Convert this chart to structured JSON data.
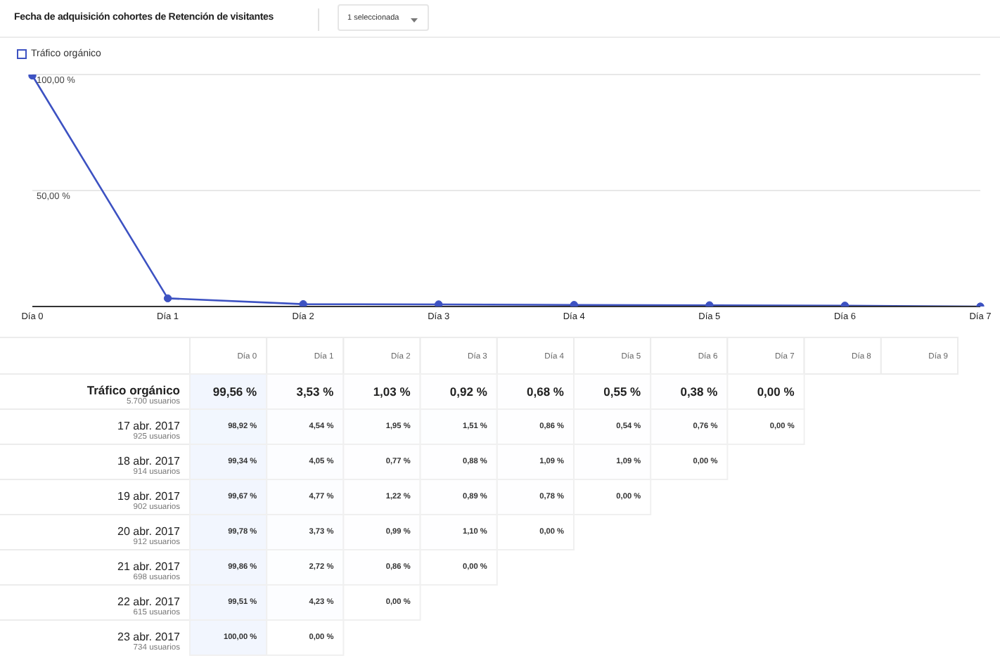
{
  "chart_data": [
    {
      "type": "line",
      "title": "Fecha de adquisición cohortes de Retención de visitantes",
      "annotations": [
        "1 seleccionada"
      ],
      "categories": [
        "Día 0",
        "Día 1",
        "Día 2",
        "Día 3",
        "Día 4",
        "Día 5",
        "Día 6",
        "Día 7"
      ],
      "series": [
        {
          "name": "Tráfico orgánico",
          "color": "#3d52c2",
          "values": [
            99.56,
            3.53,
            1.03,
            0.92,
            0.68,
            0.55,
            0.38,
            0
          ]
        }
      ],
      "ylim": [
        0,
        100
      ],
      "yticks": [
        {
          "value": 0,
          "label": null
        },
        {
          "value": 50,
          "label": "50,00 %"
        },
        {
          "value": 100,
          "label": "100,00 %"
        }
      ],
      "grid": "y",
      "legend": "top left",
      "marker": "circle",
      "line_style": "solid"
    },
    {
      "type": "heatmap",
      "categories": [
        "Día 0",
        "Día 1",
        "Día 2",
        "Día 3",
        "Día 4",
        "Día 5",
        "Día 6",
        "Día 7",
        "Día 8",
        "Día 9"
      ],
      "y_categories": [
        "Tráfico orgánico",
        "17 abr. 2017",
        "18 abr. 2017",
        "19 abr. 2017",
        "20 abr. 2017",
        "21 abr. 2017",
        "22 abr. 2017",
        "23 abr. 2017"
      ],
      "y2_categories": [
        "5.700 usuarios",
        "925 usuarios",
        "914 usuarios",
        "902 usuarios",
        "912 usuarios",
        "698 usuarios",
        "615 usuarios",
        "734 usuarios"
      ],
      "cells": [
        [
          99.56,
          3.53,
          1.03,
          0.92,
          0.68,
          0.55,
          0.38,
          0,
          null,
          null
        ],
        [
          98.92,
          4.54,
          1.95,
          1.51,
          0.86,
          0.54,
          0.76,
          0,
          null,
          null
        ],
        [
          99.34,
          4.05,
          0.77,
          0.88,
          1.09,
          1.09,
          0,
          null,
          null,
          null
        ],
        [
          99.67,
          4.77,
          1.22,
          0.89,
          0.78,
          0,
          null,
          null,
          null,
          null
        ],
        [
          99.78,
          3.73,
          0.99,
          1.1,
          0,
          null,
          null,
          null,
          null,
          null
        ],
        [
          99.86,
          2.72,
          0.86,
          0,
          null,
          null,
          null,
          null,
          null,
          null
        ],
        [
          99.51,
          4.23,
          0,
          null,
          null,
          null,
          null,
          null,
          null,
          null
        ],
        [
          100,
          0,
          null,
          null,
          null,
          null,
          null,
          null,
          null,
          null
        ]
      ],
      "cell_labels": [
        [
          "99,56 %",
          "3,53 %",
          "1,03 %",
          "0,92 %",
          "0,68 %",
          "0,55 %",
          "0,38 %",
          "0,00 %",
          null,
          null
        ],
        [
          "98,92 %",
          "4,54 %",
          "1,95 %",
          "1,51 %",
          "0,86 %",
          "0,54 %",
          "0,76 %",
          "0,00 %",
          null,
          null
        ],
        [
          "99,34 %",
          "4,05 %",
          "0,77 %",
          "0,88 %",
          "1,09 %",
          "1,09 %",
          "0,00 %",
          null,
          null,
          null
        ],
        [
          "99,67 %",
          "4,77 %",
          "1,22 %",
          "0,89 %",
          "0,78 %",
          "0,00 %",
          null,
          null,
          null,
          null
        ],
        [
          "99,78 %",
          "3,73 %",
          "0,99 %",
          "1,10 %",
          "0,00 %",
          null,
          null,
          null,
          null,
          null
        ],
        [
          "99,86 %",
          "2,72 %",
          "0,86 %",
          "0,00 %",
          null,
          null,
          null,
          null,
          null,
          null
        ],
        [
          "99,51 %",
          "4,23 %",
          "0,00 %",
          null,
          null,
          null,
          null,
          null,
          null,
          null
        ],
        [
          "100,00 %",
          "0,00 %",
          null,
          null,
          null,
          null,
          null,
          null,
          null,
          null
        ]
      ]
    }
  ]
}
